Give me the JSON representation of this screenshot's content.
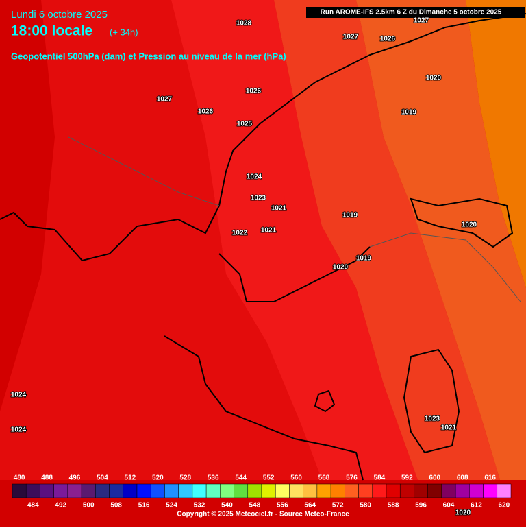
{
  "header": {
    "date": "Lundi 6 octobre 2025",
    "time": "18:00 locale",
    "lead": "(+ 34h)",
    "subtitle": "Geopotentiel 500hPa (dam) et Pression au niveau de la mer (hPa)",
    "run": "Run AROME-IFS 2.5km 6 Z du Dimanche 5 octobre 2025"
  },
  "pressure_labels": [
    "1028",
    "1027",
    "1026",
    "1027",
    "1020",
    "1019",
    "1027",
    "1026",
    "1026",
    "1025",
    "1024",
    "1023",
    "1021",
    "1019",
    "1020",
    "1022",
    "1021",
    "1019",
    "1020",
    "1024",
    "1024",
    "1023",
    "1021",
    "1020"
  ],
  "scale": {
    "top": [
      480,
      488,
      496,
      504,
      512,
      520,
      528,
      536,
      544,
      552,
      560,
      568,
      576,
      584,
      592,
      600,
      608,
      616
    ],
    "bottom": [
      484,
      492,
      500,
      508,
      516,
      524,
      532,
      540,
      548,
      556,
      564,
      572,
      580,
      588,
      596,
      604,
      612,
      620
    ],
    "colors": [
      "#2a0a3a",
      "#3c0d5a",
      "#5a1080",
      "#7a1a9a",
      "#8a2090",
      "#5a1a70",
      "#2a2a80",
      "#1a2aa0",
      "#0000c8",
      "#0010ff",
      "#1050ff",
      "#2090ff",
      "#30c8ff",
      "#40ffff",
      "#60ffc0",
      "#80ff80",
      "#60e040",
      "#a0e000",
      "#e0f000",
      "#ffff60",
      "#ffe060",
      "#ffc040",
      "#ffa000",
      "#ff8000",
      "#ff6020",
      "#ff4020",
      "#ff1a1a",
      "#e00000",
      "#c00000",
      "#a00000",
      "#800000",
      "#800060",
      "#a000a0",
      "#d000d0",
      "#ff00ff",
      "#ff80ff"
    ]
  },
  "copyright": "Copyright © 2025 Meteociel.fr - Source Meteo-France"
}
